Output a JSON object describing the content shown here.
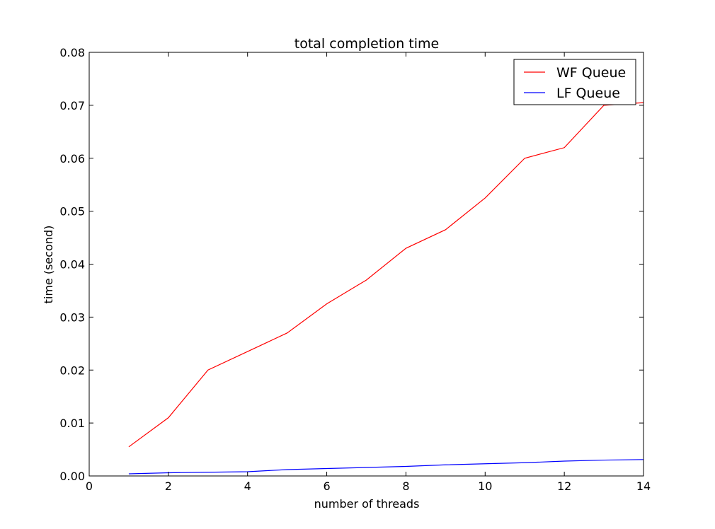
{
  "chart_data": {
    "type": "line",
    "title": "total completion time",
    "xlabel": "number of threads",
    "ylabel": "time (second)",
    "xlim": [
      0,
      14
    ],
    "ylim": [
      0,
      0.08
    ],
    "xticks": [
      0,
      2,
      4,
      6,
      8,
      10,
      12,
      14
    ],
    "yticks": [
      0.0,
      0.01,
      0.02,
      0.03,
      0.04,
      0.05,
      0.06,
      0.07,
      0.08
    ],
    "xtick_labels": [
      "0",
      "2",
      "4",
      "6",
      "8",
      "10",
      "12",
      "14"
    ],
    "ytick_labels": [
      "0.00",
      "0.01",
      "0.02",
      "0.03",
      "0.04",
      "0.05",
      "0.06",
      "0.07",
      "0.08"
    ],
    "grid": false,
    "legend_position": "top-right",
    "x": [
      1,
      2,
      3,
      4,
      5,
      6,
      7,
      8,
      9,
      10,
      11,
      12,
      13,
      14
    ],
    "series": [
      {
        "name": "WF Queue",
        "color": "#ff0000",
        "values": [
          0.0055,
          0.011,
          0.02,
          0.0235,
          0.027,
          0.0325,
          0.037,
          0.043,
          0.0465,
          0.0525,
          0.06,
          0.062,
          0.07,
          0.0705
        ]
      },
      {
        "name": "LF Queue",
        "color": "#0000ff",
        "values": [
          0.0004,
          0.0006,
          0.0007,
          0.0008,
          0.0012,
          0.0014,
          0.0016,
          0.0018,
          0.0021,
          0.0023,
          0.0025,
          0.0028,
          0.003,
          0.0031
        ]
      }
    ]
  }
}
